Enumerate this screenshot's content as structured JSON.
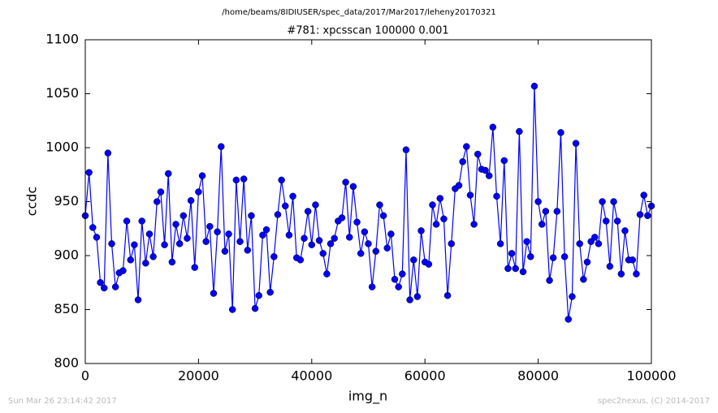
{
  "chart_data": {
    "type": "line",
    "suptitle": "/home/beams/8IDIUSER/spec_data/2017/Mar2017/leheny20170321",
    "title": "#781: xpcsscan 100000 0.001",
    "xlabel": "img_n",
    "ylabel": "ccdc",
    "footer_left": "Sun Mar 26 23:14:42 2017",
    "footer_right": "spec2nexus, (C) 2014-2017",
    "xlim": [
      0,
      100000
    ],
    "xticks": [
      0,
      20000,
      40000,
      60000,
      80000,
      100000
    ],
    "ylim": [
      800,
      1100
    ],
    "yticks": [
      800,
      850,
      900,
      950,
      1000,
      1050,
      1100
    ],
    "grid": false,
    "x": [
      0,
      667,
      1333,
      2000,
      2667,
      3333,
      4000,
      4667,
      5333,
      6000,
      6667,
      7333,
      8000,
      8667,
      9333,
      10000,
      10667,
      11333,
      12000,
      12667,
      13333,
      14000,
      14667,
      15333,
      16000,
      16667,
      17333,
      18000,
      18667,
      19333,
      20000,
      20667,
      21333,
      22000,
      22667,
      23333,
      24000,
      24667,
      25333,
      26000,
      26667,
      27333,
      28000,
      28667,
      29333,
      30000,
      30667,
      31333,
      32000,
      32667,
      33333,
      34000,
      34667,
      35333,
      36000,
      36667,
      37333,
      38000,
      38667,
      39333,
      40000,
      40667,
      41333,
      42000,
      42667,
      43333,
      44000,
      44667,
      45333,
      46000,
      46667,
      47333,
      48000,
      48667,
      49333,
      50000,
      50667,
      51333,
      52000,
      52667,
      53333,
      54000,
      54667,
      55333,
      56000,
      56667,
      57333,
      58000,
      58667,
      59333,
      60000,
      60667,
      61333,
      62000,
      62667,
      63333,
      64000,
      64667,
      65333,
      66000,
      66667,
      67333,
      68000,
      68667,
      69333,
      70000,
      70667,
      71333,
      72000,
      72667,
      73333,
      74000,
      74667,
      75333,
      76000,
      76667,
      77333,
      78000,
      78667,
      79333,
      80000,
      80667,
      81333,
      82000,
      82667,
      83333,
      84000,
      84667,
      85333,
      86000,
      86667,
      87333,
      88000,
      88667,
      89333,
      90000,
      90667,
      91333,
      92000,
      92667,
      93333,
      94000,
      94667,
      95333,
      96000,
      96667,
      97333,
      98000,
      98667,
      99333,
      100000
    ],
    "series": [
      {
        "color": "#0000ff",
        "values": [
          937,
          977,
          926,
          917,
          875,
          870,
          995,
          911,
          871,
          884,
          886,
          932,
          896,
          910,
          859,
          932,
          893,
          920,
          899,
          950,
          959,
          910,
          976,
          894,
          929,
          911,
          937,
          916,
          951,
          889,
          959,
          974,
          913,
          927,
          865,
          922,
          1001,
          904,
          920,
          850,
          970,
          913,
          971,
          905,
          937,
          851,
          863,
          919,
          924,
          866,
          899,
          938,
          970,
          946,
          919,
          955,
          898,
          896,
          916,
          941,
          910,
          947,
          914,
          902,
          883,
          911,
          916,
          932,
          935,
          968,
          917,
          964,
          931,
          902,
          922,
          911,
          871,
          904,
          947,
          937,
          907,
          920,
          878,
          871,
          883,
          998,
          859,
          896,
          862,
          923,
          894,
          892,
          947,
          929,
          953,
          934,
          863,
          911,
          962,
          965,
          987,
          1001,
          956,
          929,
          994,
          980,
          979,
          974,
          1019,
          955,
          911,
          988,
          888,
          902,
          888,
          1015,
          885,
          913,
          899,
          1057,
          950,
          929,
          941,
          877,
          898,
          941,
          1014,
          899,
          841,
          862,
          1004,
          911,
          878,
          894,
          913,
          917,
          911,
          950,
          932,
          890,
          950,
          932,
          883,
          923,
          896,
          896,
          883,
          938,
          956,
          937,
          946
        ]
      }
    ]
  }
}
